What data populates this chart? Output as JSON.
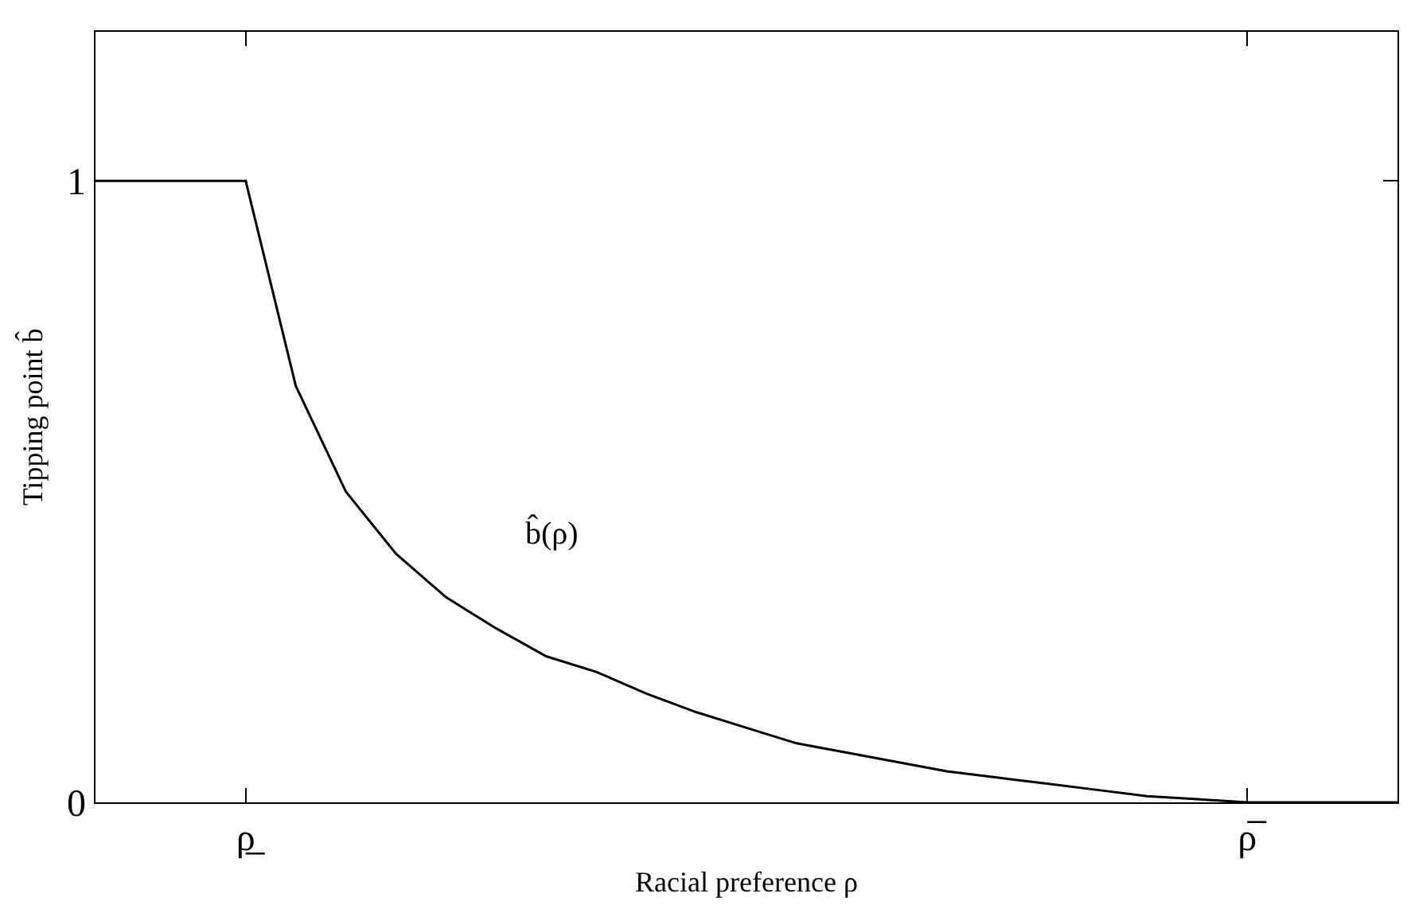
{
  "chart_data": {
    "type": "line",
    "xlabel": "Racial preference ρ",
    "ylabel": "Tipping point b̂",
    "categories": [
      null,
      null,
      null,
      "ρ̲",
      null,
      null,
      null,
      null,
      null,
      null,
      null,
      null,
      null,
      null,
      null,
      null,
      null,
      null,
      null,
      null,
      null,
      null,
      null,
      "ρ̅",
      null,
      null,
      null
    ],
    "series": [
      {
        "color": "#000000",
        "values": [
          1,
          1,
          1,
          1,
          0.67,
          0.5,
          0.4,
          0.33,
          0.28,
          0.235,
          0.21,
          0.175,
          0.145,
          0.12,
          0.095,
          0.08,
          0.065,
          0.05,
          0.04,
          0.03,
          0.02,
          0.01,
          0.005,
          0,
          0,
          0,
          0
        ]
      }
    ],
    "ylim": [
      0,
      1.24
    ],
    "yticks": [
      0,
      1
    ],
    "annotations": [
      "b̂(ρ)"
    ],
    "grid": false,
    "marker": "none",
    "line_style": "solid"
  }
}
